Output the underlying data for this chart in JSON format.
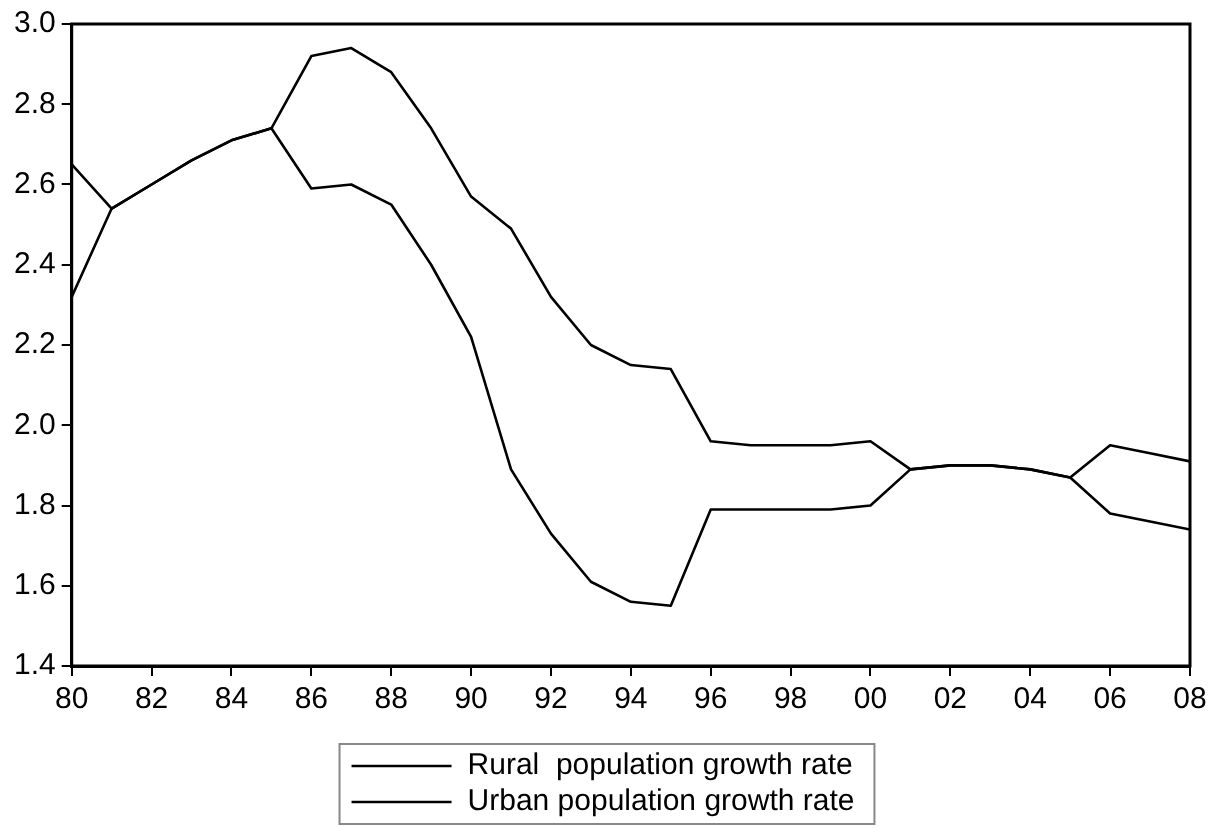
{
  "chart_data": {
    "type": "line",
    "x": [
      1980,
      1981,
      1982,
      1983,
      1984,
      1985,
      1986,
      1987,
      1988,
      1989,
      1990,
      1991,
      1992,
      1993,
      1994,
      1995,
      1996,
      1997,
      1998,
      1999,
      2000,
      2001,
      2002,
      2003,
      2004,
      2005,
      2006,
      2007,
      2008
    ],
    "series": [
      {
        "name": "Rural  population growth rate",
        "color": "#000000",
        "values": [
          2.32,
          2.54,
          2.6,
          2.66,
          2.71,
          2.74,
          2.59,
          2.6,
          2.55,
          2.4,
          2.22,
          1.89,
          1.73,
          1.61,
          1.56,
          1.55,
          1.79,
          1.79,
          1.79,
          1.79,
          1.8,
          1.89,
          1.9,
          1.9,
          1.89,
          1.87,
          1.78,
          1.76,
          1.74
        ]
      },
      {
        "name": "Urban population growth rate",
        "color": "#000000",
        "values": [
          2.65,
          2.54,
          2.6,
          2.66,
          2.71,
          2.74,
          2.92,
          2.94,
          2.88,
          2.74,
          2.57,
          2.49,
          2.32,
          2.2,
          2.15,
          2.14,
          1.96,
          1.95,
          1.95,
          1.95,
          1.96,
          1.89,
          1.9,
          1.9,
          1.89,
          1.87,
          1.95,
          1.93,
          1.91
        ]
      }
    ],
    "xlim": [
      1980,
      2008
    ],
    "xticks": [
      {
        "value": 1980,
        "label": "80"
      },
      {
        "value": 1982,
        "label": "82"
      },
      {
        "value": 1984,
        "label": "84"
      },
      {
        "value": 1986,
        "label": "86"
      },
      {
        "value": 1988,
        "label": "88"
      },
      {
        "value": 1990,
        "label": "90"
      },
      {
        "value": 1992,
        "label": "92"
      },
      {
        "value": 1994,
        "label": "94"
      },
      {
        "value": 1996,
        "label": "96"
      },
      {
        "value": 1998,
        "label": "98"
      },
      {
        "value": 2000,
        "label": "00"
      },
      {
        "value": 2002,
        "label": "02"
      },
      {
        "value": 2004,
        "label": "04"
      },
      {
        "value": 2006,
        "label": "06"
      },
      {
        "value": 2008,
        "label": "08"
      }
    ],
    "ylim": [
      1.4,
      3.0
    ],
    "yticks": [
      {
        "value": 1.4,
        "label": "1.4"
      },
      {
        "value": 1.6,
        "label": "1.6"
      },
      {
        "value": 1.8,
        "label": "1.8"
      },
      {
        "value": 2.0,
        "label": "2.0"
      },
      {
        "value": 2.2,
        "label": "2.2"
      },
      {
        "value": 2.4,
        "label": "2.4"
      },
      {
        "value": 2.6,
        "label": "2.6"
      },
      {
        "value": 2.8,
        "label": "2.8"
      },
      {
        "value": 3.0,
        "label": "3.0"
      }
    ],
    "grid": false,
    "legend": "bottom",
    "line_style": "solid"
  }
}
